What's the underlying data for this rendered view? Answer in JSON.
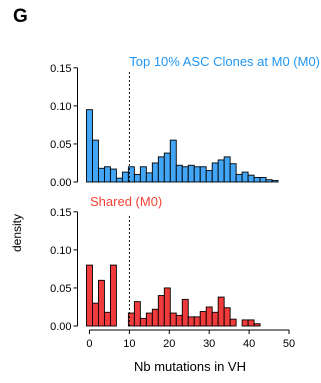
{
  "panel_label": "G",
  "colors": {
    "top": "#42a5f5",
    "shared": "#ef3b3b",
    "top_title": "#2196f3",
    "shared_title": "#f44336",
    "axis": "#000000"
  },
  "chart_data": {
    "type": "bar",
    "ylabel": "density",
    "xlabel": "Nb mutations in VH",
    "xlim": [
      -3,
      51
    ],
    "x_ticks": [
      0,
      10,
      20,
      30,
      40,
      50
    ],
    "y_ticks": [
      0.0,
      0.05,
      0.1,
      0.15
    ],
    "y_tick_labels": [
      "0.00",
      "0.05",
      "0.10",
      "0.15"
    ],
    "ylim": [
      0,
      0.155
    ],
    "vline_x": 10,
    "bin_width": 1.5,
    "panels": [
      {
        "title": "Top 10% ASC Clones at M0 (M0)",
        "series": [
          {
            "x": [
              0,
              1.5,
              3,
              4.5,
              6,
              7.5,
              9,
              10.5,
              12,
              13.5,
              15,
              16.5,
              18,
              19.5,
              21,
              22.5,
              24,
              25.5,
              27,
              28.5,
              30,
              31.5,
              33,
              34.5,
              36,
              37.5,
              39,
              40.5,
              42,
              43.5,
              45,
              46.5
            ],
            "values": [
              0.095,
              0.055,
              0.018,
              0.02,
              0.017,
              0.005,
              0.013,
              0.02,
              0.01,
              0.02,
              0.012,
              0.025,
              0.033,
              0.038,
              0.055,
              0.022,
              0.02,
              0.022,
              0.02,
              0.02,
              0.015,
              0.025,
              0.029,
              0.033,
              0.024,
              0.01,
              0.013,
              0.009,
              0.006,
              0.006,
              0.003,
              0.002
            ]
          }
        ]
      },
      {
        "title": "Shared (M0)",
        "series": [
          {
            "x": [
              0,
              1.5,
              3,
              4.5,
              6,
              7.5,
              9,
              10.5,
              12,
              13.5,
              15,
              16.5,
              18,
              19.5,
              21,
              22.5,
              24,
              25.5,
              27,
              28.5,
              30,
              31.5,
              33,
              34.5,
              36,
              37.5,
              39,
              40.5,
              42,
              43.5
            ],
            "values": [
              0.08,
              0.03,
              0.06,
              0.018,
              0.08,
              0.0,
              0.0,
              0.017,
              0.032,
              0.01,
              0.017,
              0.022,
              0.04,
              0.05,
              0.017,
              0.014,
              0.035,
              0.012,
              0.012,
              0.019,
              0.025,
              0.018,
              0.038,
              0.024,
              0.009,
              0.0,
              0.008,
              0.008,
              0.003,
              0.0
            ]
          }
        ]
      }
    ]
  }
}
